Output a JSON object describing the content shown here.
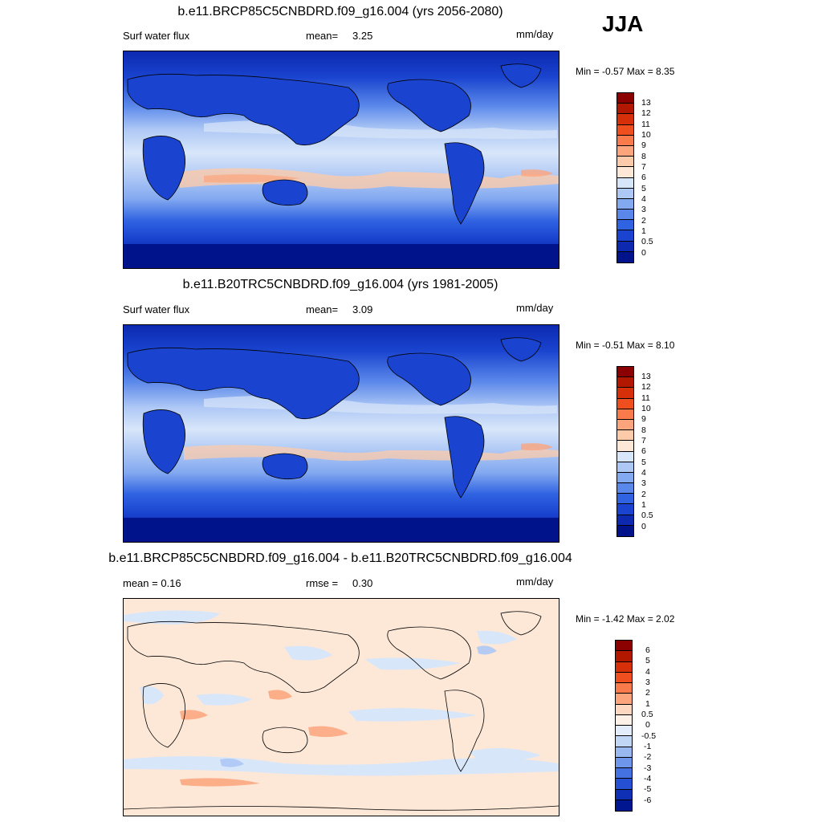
{
  "season": "JJA",
  "panels": [
    {
      "title": "b.e11.BRCP85C5CNBDRD.f09_g16.004 (yrs 2056-2080)",
      "left_label": "Surf water flux",
      "stat_label": "mean=",
      "stat_value": "3.25",
      "units": "mm/day",
      "minmax": "Min =  -0.57 Max =    8.35",
      "colorbar": {
        "colors": [
          "#8b0000",
          "#b21800",
          "#d6300a",
          "#ef4e1e",
          "#f97a4a",
          "#fca57c",
          "#fdcbaa",
          "#fde8d8",
          "#d8e6fa",
          "#aec8f5",
          "#83a9f0",
          "#5a88ea",
          "#3063e2",
          "#1a44cf",
          "#0c29b0",
          "#00138a"
        ],
        "ticks": [
          "13",
          "12",
          "11",
          "10",
          "9",
          "8",
          "7",
          "6",
          "5",
          "4",
          "3",
          "2",
          "1",
          "0.5",
          "0"
        ]
      }
    },
    {
      "title": "b.e11.B20TRC5CNBDRD.f09_g16.004 (yrs 1981-2005)",
      "left_label": "Surf water flux",
      "stat_label": "mean=",
      "stat_value": "3.09",
      "units": "mm/day",
      "minmax": "Min =  -0.51 Max =    8.10",
      "colorbar": {
        "colors": [
          "#8b0000",
          "#b21800",
          "#d6300a",
          "#ef4e1e",
          "#f97a4a",
          "#fca57c",
          "#fdcbaa",
          "#fde8d8",
          "#d8e6fa",
          "#aec8f5",
          "#83a9f0",
          "#5a88ea",
          "#3063e2",
          "#1a44cf",
          "#0c29b0",
          "#00138a"
        ],
        "ticks": [
          "13",
          "12",
          "11",
          "10",
          "9",
          "8",
          "7",
          "6",
          "5",
          "4",
          "3",
          "2",
          "1",
          "0.5",
          "0"
        ]
      }
    },
    {
      "title": "b.e11.BRCP85C5CNBDRD.f09_g16.004 - b.e11.B20TRC5CNBDRD.f09_g16.004",
      "left_label": "mean =   0.16",
      "stat_label": "rmse =",
      "stat_value": "0.30",
      "units": "mm/day",
      "minmax": "Min =  -1.42 Max =    2.02",
      "colorbar": {
        "colors": [
          "#8b0000",
          "#b21800",
          "#d6300a",
          "#ef4e1e",
          "#f97a4a",
          "#fca57c",
          "#fdd7c0",
          "#fdf0e6",
          "#e3ecfa",
          "#c1d5f5",
          "#99b8f0",
          "#6e96ea",
          "#4472e2",
          "#2550d3",
          "#0f30b5",
          "#001590"
        ],
        "ticks": [
          "6",
          "5",
          "4",
          "3",
          "2",
          "1",
          "0.5",
          "0",
          "-0.5",
          "-1",
          "-2",
          "-3",
          "-4",
          "-5",
          "-6"
        ]
      }
    }
  ]
}
